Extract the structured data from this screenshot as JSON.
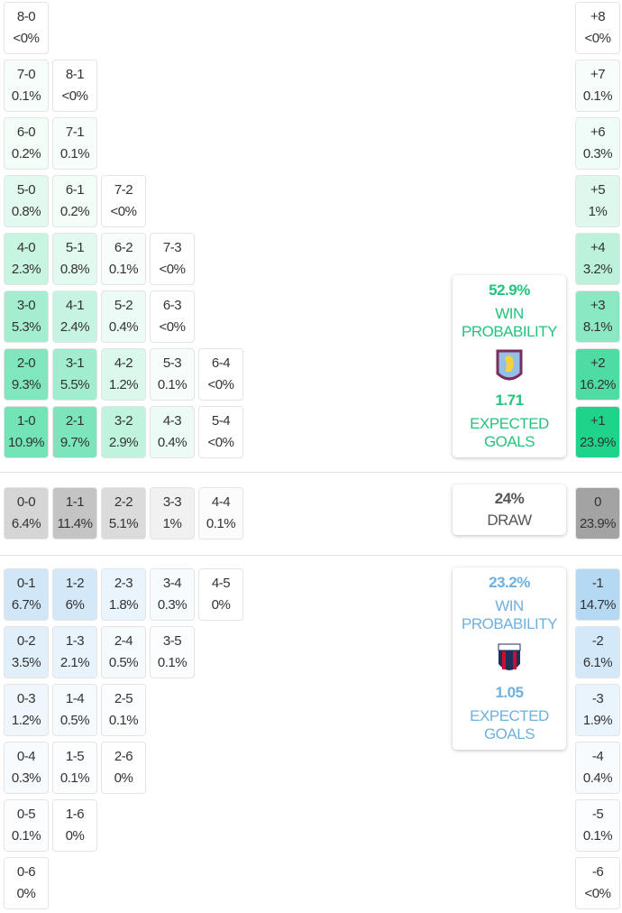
{
  "colors": {
    "home": "#1fd38a",
    "draw": "#a3a3a3",
    "away": "#9ccbef",
    "home_text": "#22c47c",
    "away_text": "#6eb0de",
    "draw_text": "#555555"
  },
  "home_grid": [
    [
      [
        "8-0",
        "<0%"
      ]
    ],
    [
      [
        "7-0",
        "0.1%"
      ],
      [
        "8-1",
        "<0%"
      ]
    ],
    [
      [
        "6-0",
        "0.2%"
      ],
      [
        "7-1",
        "0.1%"
      ]
    ],
    [
      [
        "5-0",
        "0.8%"
      ],
      [
        "6-1",
        "0.2%"
      ],
      [
        "7-2",
        "<0%"
      ]
    ],
    [
      [
        "4-0",
        "2.3%"
      ],
      [
        "5-1",
        "0.8%"
      ],
      [
        "6-2",
        "0.1%"
      ],
      [
        "7-3",
        "<0%"
      ]
    ],
    [
      [
        "3-0",
        "5.3%"
      ],
      [
        "4-1",
        "2.4%"
      ],
      [
        "5-2",
        "0.4%"
      ],
      [
        "6-3",
        "<0%"
      ]
    ],
    [
      [
        "2-0",
        "9.3%"
      ],
      [
        "3-1",
        "5.5%"
      ],
      [
        "4-2",
        "1.2%"
      ],
      [
        "5-3",
        "0.1%"
      ],
      [
        "6-4",
        "<0%"
      ]
    ],
    [
      [
        "1-0",
        "10.9%"
      ],
      [
        "2-1",
        "9.7%"
      ],
      [
        "3-2",
        "2.9%"
      ],
      [
        "4-3",
        "0.4%"
      ],
      [
        "5-4",
        "<0%"
      ]
    ]
  ],
  "draw_grid": [
    [
      [
        "0-0",
        "6.4%"
      ],
      [
        "1-1",
        "11.4%"
      ],
      [
        "2-2",
        "5.1%"
      ],
      [
        "3-3",
        "1%"
      ],
      [
        "4-4",
        "0.1%"
      ]
    ]
  ],
  "away_grid": [
    [
      [
        "0-1",
        "6.7%"
      ],
      [
        "1-2",
        "6%"
      ],
      [
        "2-3",
        "1.8%"
      ],
      [
        "3-4",
        "0.3%"
      ],
      [
        "4-5",
        "0%"
      ]
    ],
    [
      [
        "0-2",
        "3.5%"
      ],
      [
        "1-3",
        "2.1%"
      ],
      [
        "2-4",
        "0.5%"
      ],
      [
        "3-5",
        "0.1%"
      ]
    ],
    [
      [
        "0-3",
        "1.2%"
      ],
      [
        "1-4",
        "0.5%"
      ],
      [
        "2-5",
        "0.1%"
      ]
    ],
    [
      [
        "0-4",
        "0.3%"
      ],
      [
        "1-5",
        "0.1%"
      ],
      [
        "2-6",
        "0%"
      ]
    ],
    [
      [
        "0-5",
        "0.1%"
      ],
      [
        "1-6",
        "0%"
      ]
    ],
    [
      [
        "0-6",
        "0%"
      ]
    ]
  ],
  "home_margins": [
    [
      "+8",
      "<0%"
    ],
    [
      "+7",
      "0.1%"
    ],
    [
      "+6",
      "0.3%"
    ],
    [
      "+5",
      "1%"
    ],
    [
      "+4",
      "3.2%"
    ],
    [
      "+3",
      "8.1%"
    ],
    [
      "+2",
      "16.2%"
    ],
    [
      "+1",
      "23.9%"
    ]
  ],
  "draw_margin": [
    "0",
    "23.9%"
  ],
  "away_margins": [
    [
      "-1",
      "14.7%"
    ],
    [
      "-2",
      "6.1%"
    ],
    [
      "-3",
      "1.9%"
    ],
    [
      "-4",
      "0.4%"
    ],
    [
      "-5",
      "0.1%"
    ],
    [
      "-6",
      "<0%"
    ]
  ],
  "home_summary": {
    "win_pct": "52.9%",
    "win_label_1": "WIN",
    "win_label_2": "PROBABILITY",
    "crest": "aston-villa-crest",
    "xg": "1.71",
    "xg_label_1": "EXPECTED",
    "xg_label_2": "GOALS"
  },
  "draw_summary": {
    "pct": "24%",
    "label": "DRAW"
  },
  "away_summary": {
    "win_pct": "23.2%",
    "win_label_1": "WIN",
    "win_label_2": "PROBABILITY",
    "crest": "bologna-crest",
    "xg": "1.05",
    "xg_label_1": "EXPECTED",
    "xg_label_2": "GOALS"
  }
}
